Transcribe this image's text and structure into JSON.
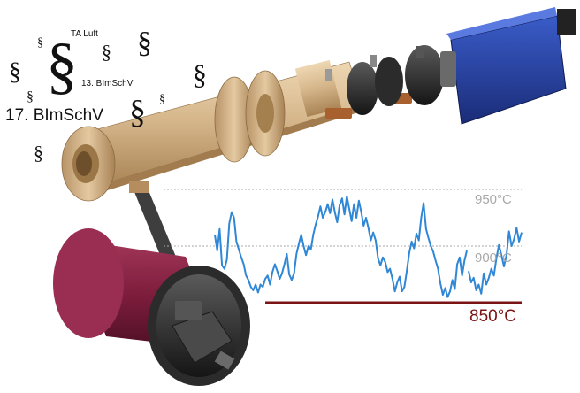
{
  "labels": {
    "ta_luft": "TA Luft",
    "bimschv13": "13. BImSchV",
    "bimschv17": "17. BImSchV"
  },
  "symbol": "§",
  "chart_data": {
    "type": "line",
    "title": "",
    "reference_lines": [
      {
        "label": "950°C",
        "value": 950,
        "style": "dotted",
        "color": "#a9a9a9"
      },
      {
        "label": "900°C",
        "value": 900,
        "style": "dotted",
        "color": "#a9a9a9"
      },
      {
        "label": "850°C",
        "value": 850,
        "style": "solid",
        "color": "#7a1414"
      }
    ],
    "ylim": [
      850,
      950
    ],
    "series": [
      {
        "color": "#2f87d6",
        "values": [
          [
            910,
            896,
            915,
            883,
            880,
            888,
            920,
            930,
            925,
            904,
            897,
            890,
            884,
            874,
            870,
            864,
            861,
            866,
            859,
            866,
            864,
            871,
            874,
            866,
            877,
            884,
            878,
            871,
            876,
            884,
            893,
            875,
            870,
            876,
            893,
            902,
            910,
            900,
            892,
            900,
            897,
            910,
            919,
            926,
            935,
            925,
            930,
            937,
            929,
            941,
            930,
            921,
            936,
            942,
            928,
            944,
            933,
            922,
            937,
            925,
            940,
            930,
            918,
            925,
            916,
            905,
            912,
            905,
            889,
            883,
            890,
            886,
            877,
            880,
            871,
            860,
            868,
            873,
            860,
            864,
            878,
            894,
            904,
            898,
            911,
            905,
            925,
            938,
            915,
            907,
            900,
            895,
            887,
            880,
            867,
            857,
            863,
            855,
            860,
            870,
            862,
            884,
            890,
            874,
            887,
            896
          ],
          [
            878,
            868,
            872,
            861,
            866,
            858,
            876,
            866,
            872,
            880,
            874,
            889,
            901,
            892,
            882,
            892,
            913,
            900,
            906,
            916,
            904,
            912
          ]
        ]
      }
    ]
  },
  "colors": {
    "wood": "#d7b88d",
    "drum": "#8b2346",
    "analyzer": "#2744a4",
    "line": "#2f87d6",
    "limit": "#7a1414"
  }
}
